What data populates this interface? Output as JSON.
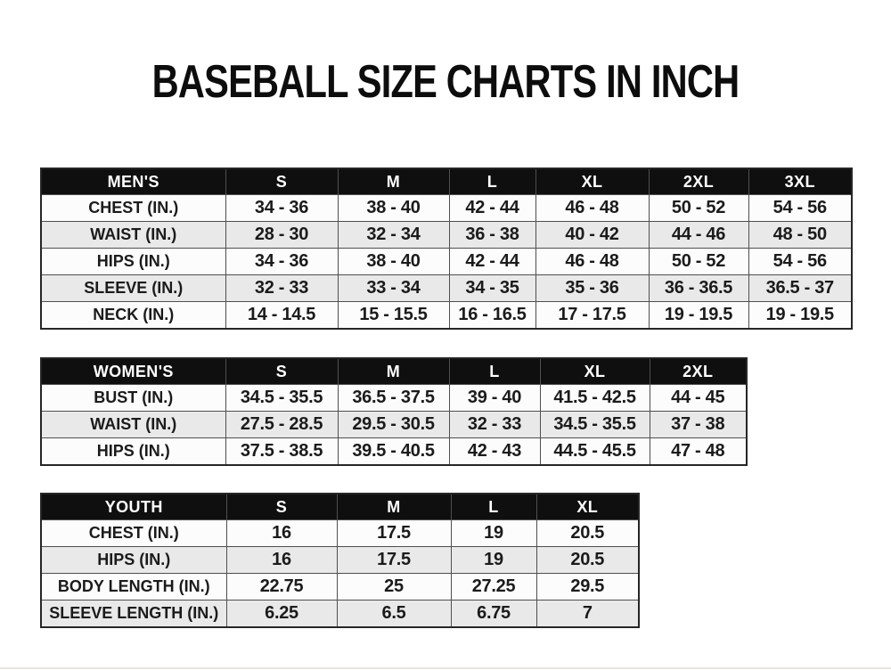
{
  "title": "BASEBALL SIZE CHARTS IN INCH",
  "colors": {
    "page_bg": "#ffffff",
    "header_bg": "#0f0f0f",
    "header_text": "#ffffff",
    "row_light": "#fcfcfc",
    "row_shaded": "#e9e9e9",
    "grid_border": "#4f4f4f",
    "outer_border": "#262626",
    "text": "#1b1b1b"
  },
  "chart_data": [
    {
      "type": "table",
      "title": "MEN'S",
      "columns": [
        "MEN'S",
        "S",
        "M",
        "L",
        "XL",
        "2XL",
        "3XL"
      ],
      "rows": [
        [
          "CHEST (IN.)",
          "34 - 36",
          "38 - 40",
          "42 - 44",
          "46 - 48",
          "50 - 52",
          "54 - 56"
        ],
        [
          "WAIST (IN.)",
          "28 - 30",
          "32 - 34",
          "36 - 38",
          "40 - 42",
          "44 - 46",
          "48 - 50"
        ],
        [
          "HIPS (IN.)",
          "34 - 36",
          "38 - 40",
          "42 - 44",
          "46 - 48",
          "50 - 52",
          "54 - 56"
        ],
        [
          "SLEEVE (IN.)",
          "32 - 33",
          "33 - 34",
          "34 - 35",
          "35 - 36",
          "36 - 36.5",
          "36.5 - 37"
        ],
        [
          "NECK (IN.)",
          "14 - 14.5",
          "15 - 15.5",
          "16 - 16.5",
          "17 - 17.5",
          "19 - 19.5",
          "19 - 19.5"
        ]
      ]
    },
    {
      "type": "table",
      "title": "WOMEN'S",
      "columns": [
        "WOMEN'S",
        "S",
        "M",
        "L",
        "XL",
        "2XL"
      ],
      "rows": [
        [
          "BUST (IN.)",
          "34.5 - 35.5",
          "36.5 - 37.5",
          "39 - 40",
          "41.5 - 42.5",
          "44 - 45"
        ],
        [
          "WAIST (IN.)",
          "27.5 - 28.5",
          "29.5 - 30.5",
          "32 - 33",
          "34.5 - 35.5",
          "37 - 38"
        ],
        [
          "HIPS (IN.)",
          "37.5 - 38.5",
          "39.5 - 40.5",
          "42 - 43",
          "44.5 - 45.5",
          "47 - 48"
        ]
      ]
    },
    {
      "type": "table",
      "title": "YOUTH",
      "columns": [
        "YOUTH",
        "S",
        "M",
        "L",
        "XL"
      ],
      "rows": [
        [
          "CHEST (IN.)",
          "16",
          "17.5",
          "19",
          "20.5"
        ],
        [
          "HIPS (IN.)",
          "16",
          "17.5",
          "19",
          "20.5"
        ],
        [
          "BODY LENGTH (IN.)",
          "22.75",
          "25",
          "27.25",
          "29.5"
        ],
        [
          "SLEEVE LENGTH (IN.)",
          "6.25",
          "6.5",
          "6.75",
          "7"
        ]
      ]
    }
  ]
}
